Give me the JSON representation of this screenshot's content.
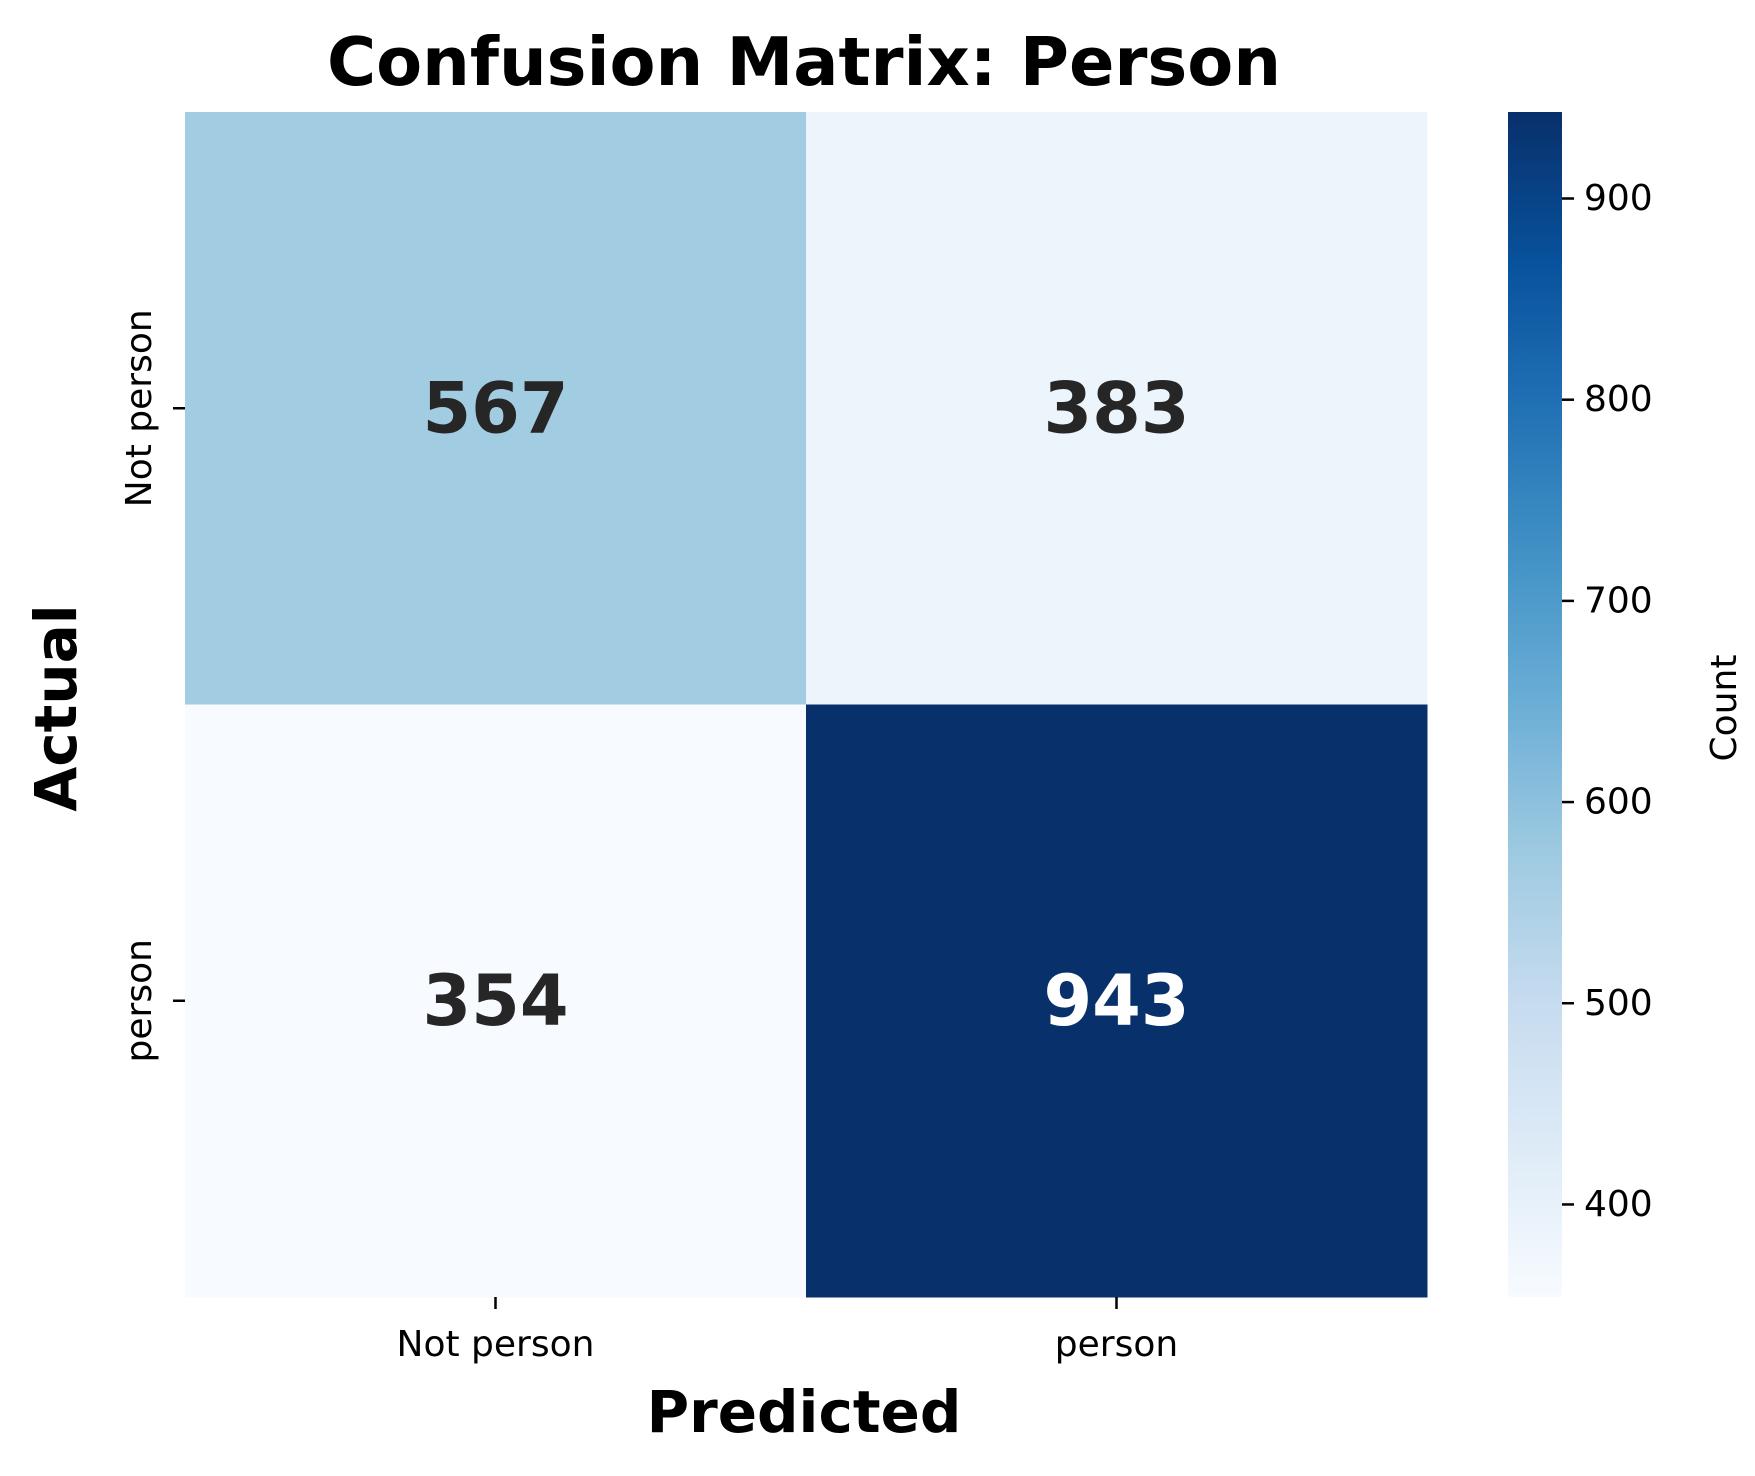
{
  "chart_data": {
    "type": "heatmap",
    "title": "Confusion Matrix: Person",
    "xlabel": "Predicted",
    "ylabel": "Actual",
    "x_categories": [
      "Not person",
      "person"
    ],
    "y_categories": [
      "Not person",
      "person"
    ],
    "values": [
      [
        567,
        383
      ],
      [
        354,
        943
      ]
    ],
    "colormap": "Blues",
    "colorbar": {
      "label": "Count",
      "range": [
        354,
        943
      ],
      "ticks": [
        400,
        500,
        600,
        700,
        800,
        900
      ]
    },
    "grid": false
  }
}
